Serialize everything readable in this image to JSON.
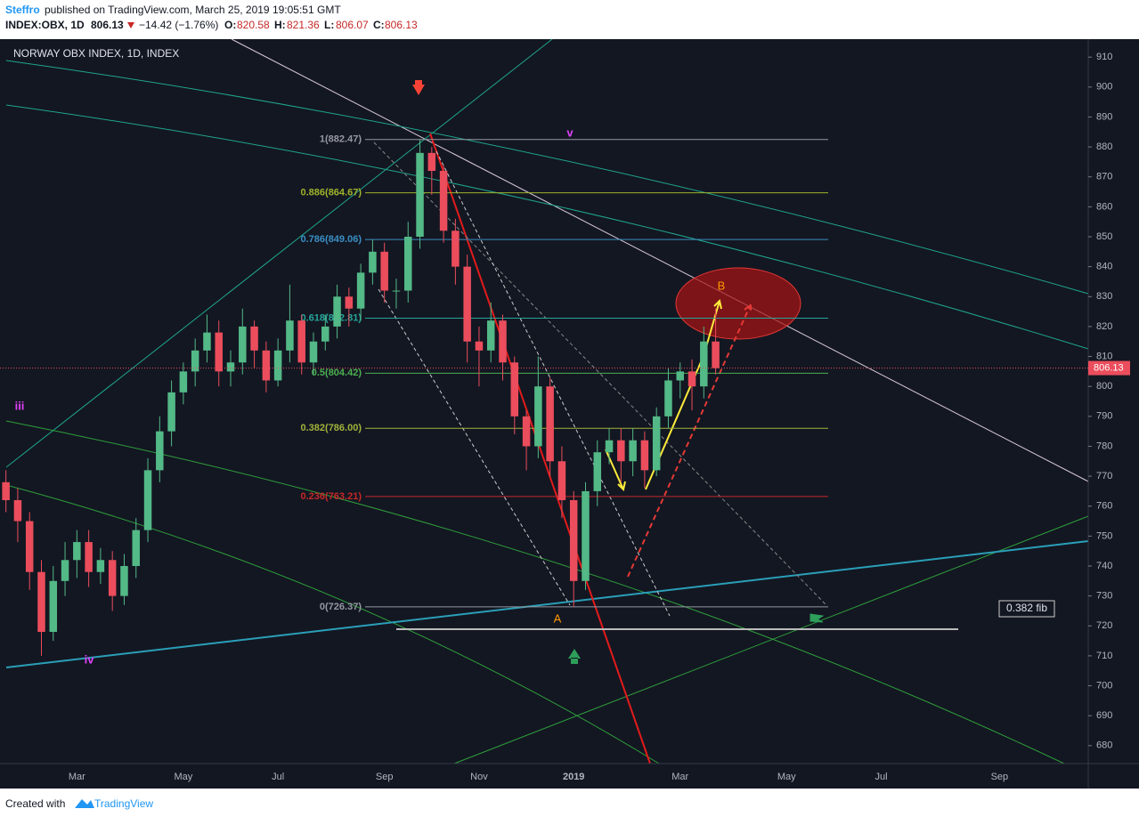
{
  "header": {
    "author": "Steffro",
    "published": "published on TradingView.com, March 25, 2019 19:05:51 GMT",
    "symbol": "INDEX:OBX, 1D",
    "last": "806.13",
    "change": "−14.42 (−1.76%)",
    "o_label": "O:",
    "open": "820.58",
    "h_label": "H:",
    "high": "821.36",
    "l_label": "L:",
    "low": "806.07",
    "c_label": "C:",
    "close": "806.13"
  },
  "footer": {
    "created": "Created with",
    "brand": "TradingView"
  },
  "chart_data": {
    "type": "candlestick",
    "title": "NORWAY OBX INDEX, 1D, INDEX",
    "up_color": "#53b987",
    "down_color": "#eb4d5c",
    "categories": [
      null,
      null,
      null,
      null,
      null,
      null,
      "Mar",
      null,
      null,
      null,
      null,
      null,
      null,
      null,
      null,
      "May",
      null,
      null,
      null,
      null,
      null,
      null,
      null,
      "Jul",
      null,
      null,
      null,
      null,
      null,
      null,
      null,
      null,
      "Sep",
      null,
      null,
      null,
      null,
      null,
      null,
      null,
      "Nov",
      null,
      null,
      null,
      null,
      null,
      null,
      null,
      "2019",
      null,
      null,
      null,
      null,
      null,
      null,
      null,
      null,
      "Mar",
      null,
      null,
      null,
      null,
      null,
      null,
      null,
      null,
      "May",
      null,
      null,
      null,
      null,
      null,
      null,
      null,
      "Jul",
      null,
      null,
      null,
      null,
      null,
      null,
      null,
      null,
      null,
      "Sep",
      null,
      null,
      null,
      null,
      null,
      null,
      null
    ],
    "open": [
      768,
      762,
      755,
      738,
      718,
      735,
      742,
      748,
      738,
      742,
      730,
      740,
      752,
      772,
      785,
      798,
      805,
      812,
      818,
      805,
      808,
      820,
      812,
      802,
      812,
      822,
      808,
      815,
      820,
      830,
      826,
      838,
      845,
      832,
      832,
      850,
      878,
      872,
      852,
      840,
      815,
      812,
      822,
      808,
      790,
      780,
      800,
      775,
      762,
      735,
      765,
      778,
      782,
      775,
      782,
      772,
      790,
      802,
      805,
      800,
      815,
      null,
      null,
      null,
      null,
      null,
      null,
      null,
      null,
      null,
      null,
      null,
      null,
      null,
      null,
      null,
      null,
      null,
      null,
      null,
      null,
      null,
      null,
      null,
      null,
      null,
      null,
      null,
      null,
      null,
      null,
      null
    ],
    "high": [
      772,
      766,
      758,
      742,
      740,
      748,
      752,
      752,
      746,
      745,
      744,
      756,
      776,
      790,
      802,
      808,
      816,
      824,
      822,
      812,
      826,
      822,
      815,
      816,
      834,
      824,
      818,
      824,
      834,
      833,
      841,
      849,
      848,
      836,
      855,
      882.47,
      880,
      874,
      856,
      844,
      820,
      828,
      824,
      810,
      792,
      810,
      803,
      780,
      765,
      768,
      782,
      786,
      786,
      786,
      785,
      793,
      806,
      808,
      809,
      820,
      826,
      null,
      null,
      null,
      null,
      null,
      null,
      null,
      null,
      null,
      null,
      null,
      null,
      null,
      null,
      null,
      null,
      null,
      null,
      null,
      null,
      null,
      null,
      null,
      null,
      null,
      null,
      null,
      null,
      null,
      null,
      null
    ],
    "low": [
      758,
      748,
      732,
      710,
      715,
      730,
      736,
      733,
      734,
      725,
      727,
      736,
      748,
      768,
      780,
      794,
      800,
      808,
      800,
      800,
      804,
      806,
      798,
      800,
      808,
      804,
      804,
      812,
      816,
      820,
      822,
      834,
      828,
      826,
      828,
      846,
      864,
      848,
      834,
      808,
      800,
      808,
      802,
      784,
      772,
      776,
      770,
      756,
      726.37,
      732,
      760,
      774,
      768,
      770,
      766,
      770,
      786,
      796,
      792,
      796,
      804,
      null,
      null,
      null,
      null,
      null,
      null,
      null,
      null,
      null,
      null,
      null,
      null,
      null,
      null,
      null,
      null,
      null,
      null,
      null,
      null,
      null,
      null,
      null,
      null,
      null,
      null,
      null,
      null,
      null,
      null,
      null
    ],
    "close": [
      762,
      755,
      738,
      718,
      735,
      742,
      748,
      738,
      742,
      730,
      740,
      752,
      772,
      785,
      798,
      805,
      812,
      818,
      805,
      808,
      820,
      812,
      802,
      812,
      822,
      808,
      815,
      820,
      830,
      826,
      838,
      845,
      832,
      832,
      850,
      878,
      872,
      852,
      840,
      815,
      812,
      822,
      808,
      790,
      780,
      800,
      775,
      762,
      735,
      765,
      778,
      782,
      775,
      782,
      772,
      790,
      802,
      805,
      800,
      815,
      806.13,
      null,
      null,
      null,
      null,
      null,
      null,
      null,
      null,
      null,
      null,
      null,
      null,
      null,
      null,
      null,
      null,
      null,
      null,
      null,
      null,
      null,
      null,
      null,
      null,
      null,
      null,
      null,
      null,
      null,
      null,
      null
    ],
    "ylim": [
      674,
      916
    ],
    "yticks": [
      680,
      690,
      700,
      710,
      720,
      730,
      740,
      750,
      760,
      770,
      780,
      790,
      800,
      810,
      820,
      830,
      840,
      850,
      860,
      870,
      880,
      890,
      900,
      910
    ],
    "last_price": 806.13,
    "fib_levels": [
      {
        "label": "1(882.47)",
        "value": 882.47,
        "color": "#9598a1"
      },
      {
        "label": "0.886(864.67)",
        "value": 864.67,
        "color": "#9fb32a"
      },
      {
        "label": "0.786(849.06)",
        "value": 849.06,
        "color": "#3a8fc4"
      },
      {
        "label": "0.618(822.81)",
        "value": 822.81,
        "color": "#26a69a"
      },
      {
        "label": "0.5(804.42)",
        "value": 804.42,
        "color": "#4caf50"
      },
      {
        "label": "0.382(786.00)",
        "value": 786.0,
        "color": "#a0b43a"
      },
      {
        "label": "0.236(763.21)",
        "value": 763.21,
        "color": "#c62828"
      },
      {
        "label": "0(726.37)",
        "value": 726.37,
        "color": "#9598a1"
      }
    ],
    "annotations": [
      "v",
      "iii",
      "iv",
      "A",
      "B",
      "0.382 fib"
    ]
  }
}
